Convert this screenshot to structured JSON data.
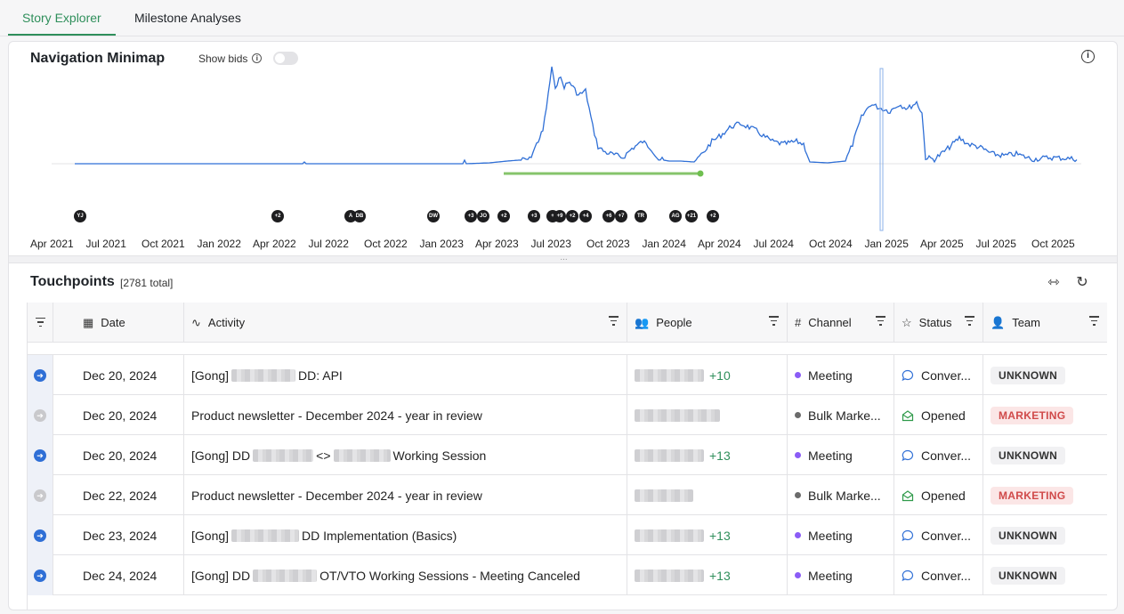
{
  "tabs": [
    "Story Explorer",
    "Milestone Analyses"
  ],
  "minimap": {
    "title": "Navigation Minimap",
    "show_bids_label": "Show bids",
    "show_bids_on": false,
    "x_ticks": [
      "Apr 2021",
      "Jul 2021",
      "Oct 2021",
      "Jan 2022",
      "Apr 2022",
      "Jul 2022",
      "Oct 2022",
      "Jan 2023",
      "Apr 2023",
      "Jul 2023",
      "Oct 2023",
      "Jan 2024",
      "Apr 2024",
      "Jul 2024",
      "Oct 2024",
      "Jan 2025",
      "Apr 2025",
      "Jul 2025",
      "Oct 2025"
    ],
    "avatars": [
      "YJ",
      "+2",
      "A",
      "DB",
      "DW",
      "+3",
      "JO",
      "+2",
      "+3",
      "+",
      "+9",
      "+2",
      "+4",
      "+6",
      "+7",
      "TR",
      "AG",
      "+21",
      "+2"
    ],
    "line_color": "#2f6fd6",
    "bid_range_color": "#86c46b"
  },
  "touchpoints": {
    "title": "Touchpoints",
    "count": "[2781 total]",
    "columns": [
      "Date",
      "Activity",
      "People",
      "Channel",
      "Status",
      "Team"
    ],
    "rows": [
      {
        "date": "Dec 20, 2024",
        "activity_pre": "[Gong]",
        "activity_post": "DD: API",
        "people_more": "+10",
        "channel": "Meeting",
        "status": "Conver...",
        "team": "UNKNOWN"
      },
      {
        "date": "Dec 20, 2024",
        "activity_pre": "Product newsletter - December 2024 - year in review",
        "activity_post": "",
        "people_more": "",
        "channel": "Bulk Marke...",
        "status": "Opened",
        "team": "MARKETING"
      },
      {
        "date": "Dec 20, 2024",
        "activity_pre": "[Gong] DD",
        "activity_mid": "<>",
        "activity_post": "Working Session",
        "people_more": "+13",
        "channel": "Meeting",
        "status": "Conver...",
        "team": "UNKNOWN"
      },
      {
        "date": "Dec 22, 2024",
        "activity_pre": "Product newsletter - December 2024 - year in review",
        "activity_post": "",
        "people_more": "",
        "channel": "Bulk Marke...",
        "status": "Opened",
        "team": "MARKETING"
      },
      {
        "date": "Dec 23, 2024",
        "activity_pre": "[Gong]",
        "activity_post": "DD Implementation (Basics)",
        "people_more": "+13",
        "channel": "Meeting",
        "status": "Conver...",
        "team": "UNKNOWN"
      },
      {
        "date": "Dec 24, 2024",
        "activity_pre": "[Gong] DD",
        "activity_post": "OT/VTO Working Sessions - Meeting Canceled",
        "people_more": "+13",
        "channel": "Meeting",
        "status": "Conver...",
        "team": "UNKNOWN"
      }
    ]
  }
}
